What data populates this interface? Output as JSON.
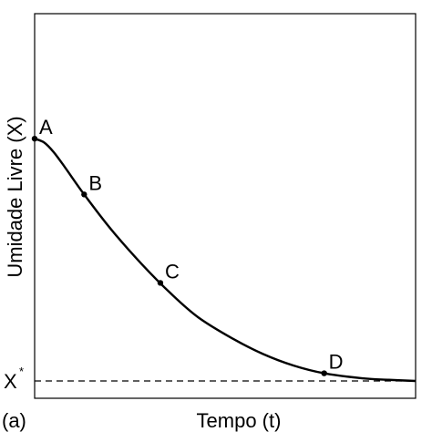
{
  "chart_data": {
    "type": "line",
    "panel_label": "(a)",
    "xlabel": "Tempo (t)",
    "ylabel": "Umidade Livre (X)",
    "equilibrium_label": "X",
    "equilibrium_superscript": "*",
    "axes": {
      "ticks": false,
      "grid": false
    },
    "xlim": [
      0,
      1
    ],
    "ylim": [
      0,
      1
    ],
    "equilibrium_value": 0.045,
    "curve": {
      "x": [
        0.0,
        0.025,
        0.05,
        0.08,
        0.13,
        0.2,
        0.28,
        0.36,
        0.43,
        0.52,
        0.6,
        0.68,
        0.76,
        0.86,
        0.93,
        1.0
      ],
      "y": [
        0.675,
        0.665,
        0.64,
        0.6,
        0.53,
        0.44,
        0.35,
        0.27,
        0.21,
        0.155,
        0.115,
        0.085,
        0.065,
        0.052,
        0.048,
        0.045
      ]
    },
    "points": [
      {
        "label": "A",
        "x": 0.0,
        "y": 0.675
      },
      {
        "label": "B",
        "x": 0.13,
        "y": 0.53
      },
      {
        "label": "C",
        "x": 0.33,
        "y": 0.3
      },
      {
        "label": "D",
        "x": 0.76,
        "y": 0.065
      }
    ]
  }
}
